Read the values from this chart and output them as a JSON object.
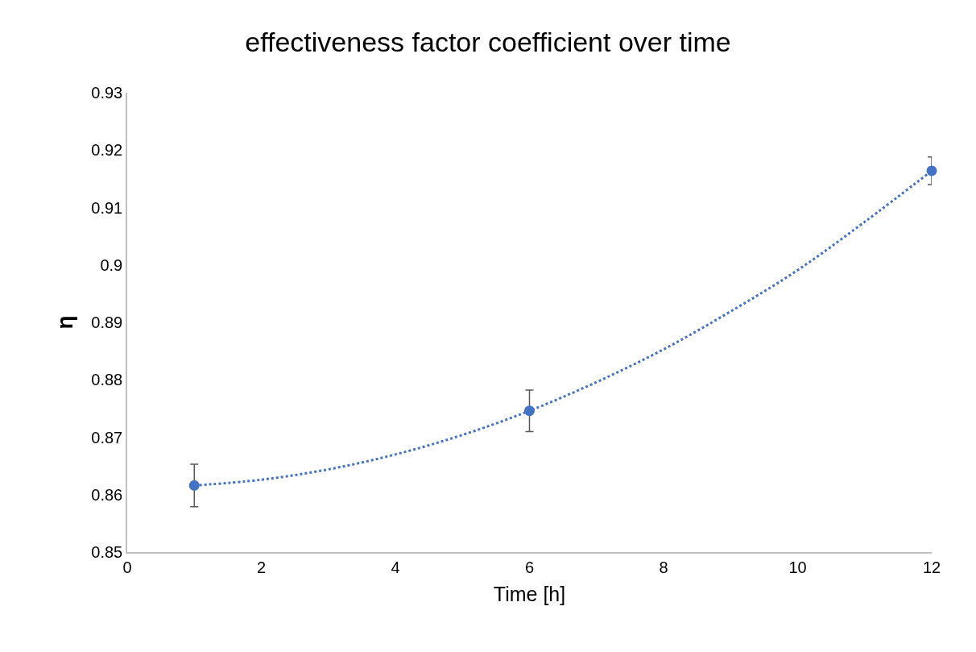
{
  "chart_data": {
    "type": "scatter",
    "title": "effectiveness factor coefficient over time",
    "xlabel": "Time [h]",
    "ylabel": "η",
    "xlim": [
      0,
      12
    ],
    "xticks": [
      0,
      2,
      4,
      6,
      8,
      10,
      12
    ],
    "ylim": [
      0.85,
      0.93
    ],
    "yticks": [
      0.85,
      0.86,
      0.87,
      0.88,
      0.89,
      0.9,
      0.91,
      0.92,
      0.93
    ],
    "series": [
      {
        "type": "line",
        "color": "#4472c4",
        "line_style": "dotted",
        "marker": "none",
        "x": [
          1,
          2,
          3,
          4,
          5,
          6,
          7,
          8,
          9,
          10,
          11,
          12
        ],
        "values": [
          0.8616,
          0.8626,
          0.8644,
          0.867,
          0.8704,
          0.8746,
          0.8796,
          0.8853,
          0.8919,
          0.8991,
          0.9075,
          0.9164
        ]
      },
      {
        "color": "#4472c4",
        "marker": "circle",
        "x": [
          1,
          6,
          12
        ],
        "values": [
          0.8616,
          0.8746,
          0.9164
        ],
        "errors": [
          0.0037,
          0.0036,
          0.0024
        ]
      }
    ]
  }
}
